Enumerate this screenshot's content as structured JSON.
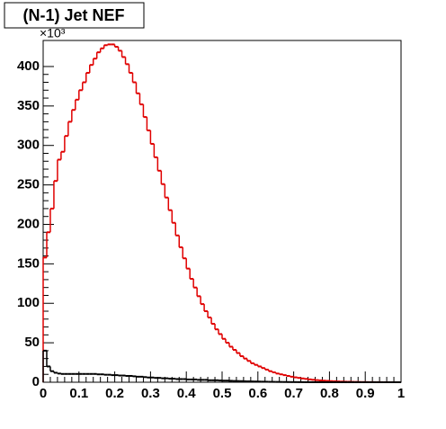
{
  "chart_data": {
    "type": "histogram",
    "title": "(N-1) Jet NEF",
    "y_exponent_label": "×10³",
    "bins": [
      0,
      0.01,
      0.02,
      0.03,
      0.04,
      0.05,
      0.06,
      0.07,
      0.08,
      0.09,
      0.1,
      0.11,
      0.12,
      0.13,
      0.14,
      0.15,
      0.16,
      0.17,
      0.18,
      0.19,
      0.2,
      0.21,
      0.22,
      0.23,
      0.24,
      0.25,
      0.26,
      0.27,
      0.28,
      0.29,
      0.3,
      0.31,
      0.32,
      0.33,
      0.34,
      0.35,
      0.36,
      0.37,
      0.38,
      0.39,
      0.4,
      0.41,
      0.42,
      0.43,
      0.44,
      0.45,
      0.46,
      0.47,
      0.48,
      0.49,
      0.5,
      0.51,
      0.52,
      0.53,
      0.54,
      0.55,
      0.56,
      0.57,
      0.58,
      0.59,
      0.6,
      0.61,
      0.62,
      0.63,
      0.64,
      0.65,
      0.66,
      0.67,
      0.68,
      0.69,
      0.7,
      0.71,
      0.72,
      0.73,
      0.74,
      0.75,
      0.76,
      0.77,
      0.78,
      0.79,
      0.8,
      0.81,
      0.82,
      0.83,
      0.84,
      0.85,
      0.86,
      0.87,
      0.88,
      0.89,
      0.9,
      0.91,
      0.92,
      0.93,
      0.94,
      0.95,
      0.96,
      0.97,
      0.98,
      0.99,
      1
    ],
    "series": [
      {
        "color": "#e00000",
        "values": [
          158,
          190,
          220,
          255,
          282,
          292,
          312,
          330,
          345,
          358,
          370,
          380,
          392,
          402,
          410,
          418,
          423,
          427,
          428,
          428,
          425,
          420,
          412,
          403,
          392,
          380,
          366,
          352,
          336,
          319,
          302,
          285,
          268,
          251,
          234,
          218,
          202,
          186,
          171,
          157,
          144,
          131,
          120,
          109,
          99,
          90,
          82,
          74,
          67,
          61,
          55,
          50,
          45,
          41,
          37,
          33,
          30,
          27,
          24,
          22,
          20,
          18,
          16,
          14,
          12.5,
          11,
          10,
          9,
          8,
          7,
          6.2,
          5.5,
          4.8,
          4.2,
          3.6,
          3.1,
          2.7,
          2.3,
          2,
          1.7,
          1.4,
          1.2,
          1,
          0.8,
          0.7,
          0.6,
          0.5,
          0.4,
          0.3,
          0.25,
          0.2,
          0.15,
          0.12,
          0.1,
          0.08,
          0.06,
          0.05,
          0.04,
          0.03,
          0.02
        ]
      },
      {
        "color": "#000000",
        "values": [
          40,
          20,
          14,
          12,
          11,
          10.5,
          10.5,
          10.5,
          10.5,
          10.5,
          10.5,
          10.5,
          10.5,
          10.5,
          10.5,
          10,
          10,
          9.5,
          9.5,
          9,
          9,
          8.5,
          8.5,
          8,
          8,
          7.5,
          7,
          7,
          6.5,
          6,
          6,
          5.5,
          5.5,
          5,
          5,
          4.5,
          4.5,
          4,
          4,
          4,
          3.5,
          3.5,
          3.5,
          3,
          3,
          3,
          2.5,
          2.5,
          2.5,
          2.2,
          2,
          2,
          1.8,
          1.6,
          1.5,
          1.4,
          1.2,
          1.1,
          1,
          0.9,
          0.8,
          0.7,
          0.6,
          0.5,
          0.45,
          0.4,
          0.35,
          0.3,
          0.25,
          0.2,
          0.18,
          0.15,
          0.12,
          0.1,
          0.08,
          0.07,
          0.06,
          0.05,
          0.04,
          0.03,
          0.03,
          0.02,
          0.02,
          0.015,
          0.01,
          0.01,
          0.01,
          0.005,
          0.005,
          0.005,
          0.004,
          0.003,
          0.003,
          0.002,
          0.002,
          0.001,
          0.001,
          0.001,
          0.001,
          0.001
        ]
      }
    ],
    "xlim": [
      0,
      1
    ],
    "xticks": [
      0,
      0.1,
      0.2,
      0.3,
      0.4,
      0.5,
      0.6,
      0.7,
      0.8,
      0.9,
      1
    ],
    "ylim": [
      0,
      433
    ],
    "yticks": [
      0,
      50,
      100,
      150,
      200,
      250,
      300,
      350,
      400
    ]
  }
}
